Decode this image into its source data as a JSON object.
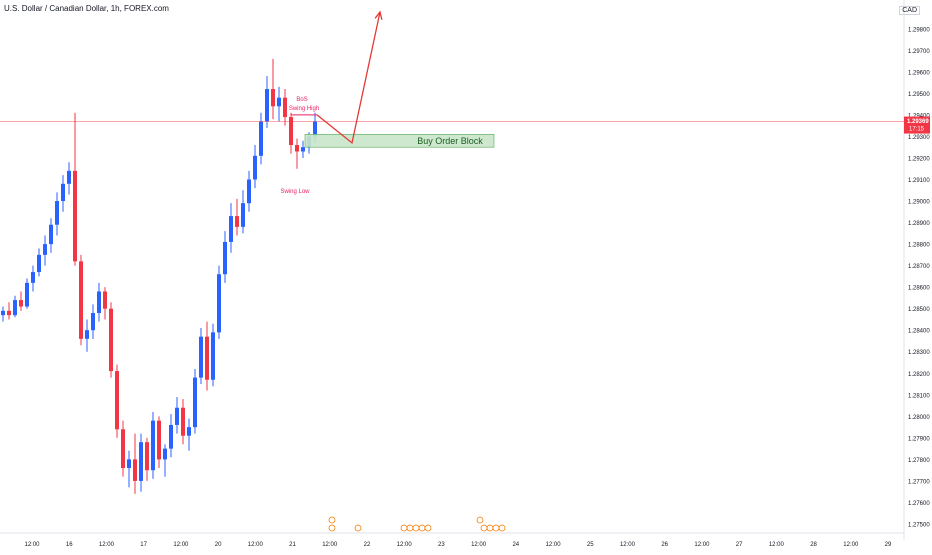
{
  "header": {
    "symbol_title": "U.S. Dollar / Canadian Dollar, 1h, FOREX.com",
    "currency": "CAD"
  },
  "colors": {
    "up": "#2962ff",
    "down": "#f23645",
    "arrow": "#e53935",
    "order_block_fill": "#c8e6c9",
    "order_block_border": "#43a047",
    "order_block_text": "#1b5e20",
    "annotation": "#e91e63",
    "price_line": "#f23645",
    "axis_text": "#131722"
  },
  "price_axis": {
    "labels": [
      "1.29800",
      "1.29700",
      "1.29600",
      "1.29500",
      "1.29400",
      "1.29300",
      "1.29200",
      "1.29100",
      "1.29000",
      "1.28900",
      "1.28800",
      "1.28700",
      "1.28600",
      "1.28500",
      "1.28400",
      "1.28300",
      "1.28200",
      "1.28100",
      "1.28000",
      "1.27900",
      "1.27800",
      "1.27700",
      "1.27600",
      "1.27500"
    ],
    "current_price": "1.29369",
    "countdown": "17:15"
  },
  "time_axis": {
    "labels": [
      "12:00",
      "16",
      "12:00",
      "17",
      "12:00",
      "20",
      "12:00",
      "21",
      "12:00",
      "22",
      "12:00",
      "23",
      "12:00",
      "24",
      "12:00",
      "25",
      "12:00",
      "26",
      "12:00",
      "27",
      "12:00",
      "28",
      "12:00",
      "29"
    ]
  },
  "annotations": {
    "bos": "BoS",
    "swing_high": "Swing High",
    "swing_low": "Swing Low",
    "order_block": "Buy Order Block"
  },
  "chart_data": {
    "type": "candlestick",
    "title": "U.S. Dollar / Canadian Dollar, 1h, FOREX.com",
    "ylim": [
      1.275,
      1.2985
    ],
    "current_price": 1.29369,
    "order_block": {
      "low": 1.2925,
      "high": 1.2931
    },
    "swing_high": 1.294,
    "swing_low": 1.2924,
    "candles": [
      {
        "o": 1.2847,
        "h": 1.2851,
        "l": 1.2844,
        "c": 1.2849
      },
      {
        "o": 1.2849,
        "h": 1.2853,
        "l": 1.2845,
        "c": 1.2847
      },
      {
        "o": 1.2847,
        "h": 1.2856,
        "l": 1.2846,
        "c": 1.2854
      },
      {
        "o": 1.2854,
        "h": 1.2858,
        "l": 1.2849,
        "c": 1.2851
      },
      {
        "o": 1.2851,
        "h": 1.2864,
        "l": 1.285,
        "c": 1.2862
      },
      {
        "o": 1.2862,
        "h": 1.287,
        "l": 1.2858,
        "c": 1.2867
      },
      {
        "o": 1.2867,
        "h": 1.2878,
        "l": 1.2865,
        "c": 1.2875
      },
      {
        "o": 1.2875,
        "h": 1.2884,
        "l": 1.287,
        "c": 1.288
      },
      {
        "o": 1.288,
        "h": 1.2892,
        "l": 1.2876,
        "c": 1.2889
      },
      {
        "o": 1.2889,
        "h": 1.2904,
        "l": 1.2884,
        "c": 1.29
      },
      {
        "o": 1.29,
        "h": 1.2912,
        "l": 1.2895,
        "c": 1.2908
      },
      {
        "o": 1.2908,
        "h": 1.2918,
        "l": 1.2903,
        "c": 1.2914
      },
      {
        "o": 1.2914,
        "h": 1.2941,
        "l": 1.287,
        "c": 1.2872
      },
      {
        "o": 1.2872,
        "h": 1.2875,
        "l": 1.2833,
        "c": 1.2836
      },
      {
        "o": 1.2836,
        "h": 1.2845,
        "l": 1.283,
        "c": 1.284
      },
      {
        "o": 1.284,
        "h": 1.2852,
        "l": 1.2836,
        "c": 1.2848
      },
      {
        "o": 1.2848,
        "h": 1.2862,
        "l": 1.2844,
        "c": 1.2858
      },
      {
        "o": 1.2858,
        "h": 1.286,
        "l": 1.2845,
        "c": 1.285
      },
      {
        "o": 1.285,
        "h": 1.2853,
        "l": 1.2818,
        "c": 1.2821
      },
      {
        "o": 1.2821,
        "h": 1.2824,
        "l": 1.279,
        "c": 1.2794
      },
      {
        "o": 1.2794,
        "h": 1.2798,
        "l": 1.2772,
        "c": 1.2776
      },
      {
        "o": 1.2776,
        "h": 1.2784,
        "l": 1.2767,
        "c": 1.278
      },
      {
        "o": 1.278,
        "h": 1.2792,
        "l": 1.2764,
        "c": 1.277
      },
      {
        "o": 1.277,
        "h": 1.2792,
        "l": 1.2765,
        "c": 1.2788
      },
      {
        "o": 1.2788,
        "h": 1.279,
        "l": 1.277,
        "c": 1.2775
      },
      {
        "o": 1.2775,
        "h": 1.2802,
        "l": 1.2771,
        "c": 1.2798
      },
      {
        "o": 1.2798,
        "h": 1.28,
        "l": 1.2776,
        "c": 1.278
      },
      {
        "o": 1.278,
        "h": 1.2787,
        "l": 1.2772,
        "c": 1.2785
      },
      {
        "o": 1.2785,
        "h": 1.2801,
        "l": 1.2781,
        "c": 1.2796
      },
      {
        "o": 1.2796,
        "h": 1.2809,
        "l": 1.2792,
        "c": 1.2804
      },
      {
        "o": 1.2804,
        "h": 1.2808,
        "l": 1.2787,
        "c": 1.2791
      },
      {
        "o": 1.2791,
        "h": 1.2799,
        "l": 1.2784,
        "c": 1.2795
      },
      {
        "o": 1.2795,
        "h": 1.2822,
        "l": 1.2792,
        "c": 1.2818
      },
      {
        "o": 1.2818,
        "h": 1.2841,
        "l": 1.2815,
        "c": 1.2837
      },
      {
        "o": 1.2837,
        "h": 1.2844,
        "l": 1.2812,
        "c": 1.2817
      },
      {
        "o": 1.2817,
        "h": 1.2843,
        "l": 1.2814,
        "c": 1.2839
      },
      {
        "o": 1.2839,
        "h": 1.287,
        "l": 1.2836,
        "c": 1.2866
      },
      {
        "o": 1.2866,
        "h": 1.2886,
        "l": 1.2862,
        "c": 1.2881
      },
      {
        "o": 1.2881,
        "h": 1.2899,
        "l": 1.2876,
        "c": 1.2893
      },
      {
        "o": 1.2893,
        "h": 1.2901,
        "l": 1.2884,
        "c": 1.2888
      },
      {
        "o": 1.2888,
        "h": 1.2905,
        "l": 1.2885,
        "c": 1.2899
      },
      {
        "o": 1.2899,
        "h": 1.2914,
        "l": 1.2895,
        "c": 1.291
      },
      {
        "o": 1.291,
        "h": 1.2926,
        "l": 1.2906,
        "c": 1.2921
      },
      {
        "o": 1.2921,
        "h": 1.2941,
        "l": 1.2917,
        "c": 1.2937
      },
      {
        "o": 1.2937,
        "h": 1.2958,
        "l": 1.2934,
        "c": 1.2952
      },
      {
        "o": 1.2952,
        "h": 1.2966,
        "l": 1.2938,
        "c": 1.2944
      },
      {
        "o": 1.2944,
        "h": 1.2953,
        "l": 1.2937,
        "c": 1.2948
      },
      {
        "o": 1.2948,
        "h": 1.2952,
        "l": 1.2935,
        "c": 1.2939
      },
      {
        "o": 1.2939,
        "h": 1.2941,
        "l": 1.2922,
        "c": 1.2926
      },
      {
        "o": 1.2926,
        "h": 1.2929,
        "l": 1.2915,
        "c": 1.2923
      },
      {
        "o": 1.2923,
        "h": 1.2928,
        "l": 1.292,
        "c": 1.2925
      },
      {
        "o": 1.2925,
        "h": 1.2932,
        "l": 1.2922,
        "c": 1.293
      },
      {
        "o": 1.293,
        "h": 1.2941,
        "l": 1.2927,
        "c": 1.2937
      }
    ]
  }
}
